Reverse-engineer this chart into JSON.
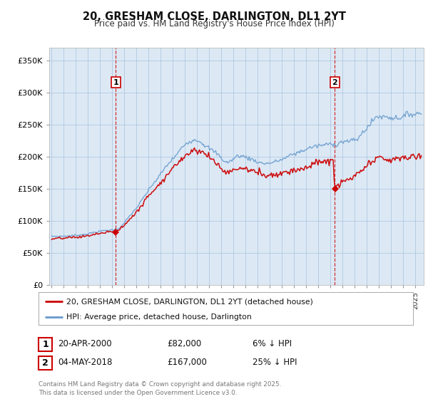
{
  "title_line1": "20, GRESHAM CLOSE, DARLINGTON, DL1 2YT",
  "title_line2": "Price paid vs. HM Land Registry's House Price Index (HPI)",
  "legend_label1": "20, GRESHAM CLOSE, DARLINGTON, DL1 2YT (detached house)",
  "legend_label2": "HPI: Average price, detached house, Darlington",
  "annotation1_date": "20-APR-2000",
  "annotation1_price": 82000,
  "annotation1_text": "6% ↓ HPI",
  "annotation2_date": "04-MAY-2018",
  "annotation2_price": 167000,
  "annotation2_text": "25% ↓ HPI",
  "vline1_x": 2000.3,
  "vline2_x": 2018.37,
  "sale1_year": 2000.3,
  "sale1_price": 82000,
  "sale2_year": 2018.37,
  "sale2_price": 167000,
  "ylim": [
    0,
    370000
  ],
  "xlim_start": 1994.8,
  "xlim_end": 2025.7,
  "footer_text": "Contains HM Land Registry data © Crown copyright and database right 2025.\nThis data is licensed under the Open Government Licence v3.0.",
  "bg_color": "#ffffff",
  "plot_bg_color": "#dce9f5",
  "red_color": "#cc0000",
  "blue_color": "#6699cc",
  "grid_color": "#b0c8e0"
}
